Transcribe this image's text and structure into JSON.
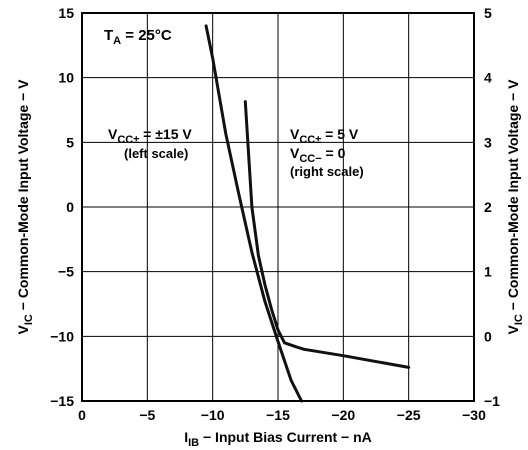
{
  "chart_data": {
    "type": "line",
    "x_axis": {
      "label_main": "I",
      "label_sub": "IB",
      "label_rest": " − Input Bias Current − nA",
      "range": [
        0,
        -30
      ],
      "ticks": [
        0,
        -5,
        -10,
        -15,
        -20,
        -25,
        -30
      ],
      "tick_labels": [
        "0",
        "−5",
        "−10",
        "−15",
        "−20",
        "−25",
        "−30"
      ]
    },
    "y_left": {
      "label_main": "V",
      "label_sub": "IC",
      "label_rest": " − Common-Mode Input Voltage − V",
      "range": [
        -15,
        15
      ],
      "ticks": [
        15,
        10,
        5,
        0,
        -5,
        -10,
        -15
      ],
      "tick_labels": [
        "15",
        "10",
        "5",
        "0",
        "−5",
        "−10",
        "−15"
      ]
    },
    "y_right": {
      "label_main": "V",
      "label_sub": "IC",
      "label_rest": " − Common-Mode Input Voltage − V",
      "range": [
        -1,
        5
      ],
      "ticks": [
        5,
        4,
        3,
        2,
        1,
        0,
        -1
      ],
      "tick_labels": [
        "5",
        "4",
        "3",
        "2",
        "1",
        "0",
        "−1"
      ]
    },
    "grid": true,
    "annotations": {
      "ta_main": "T",
      "ta_sub": "A",
      "ta_rest": " = 25°C",
      "left_line1_main": "V",
      "left_line1_sub": "CC±",
      "left_line1_rest": " = ±15 V",
      "left_line2": "(left scale)",
      "right_line1_main": "V",
      "right_line1_sub": "CC±",
      "right_line1_rest": " = 5 V",
      "right_line2_main": "V",
      "right_line2_sub": "CC−",
      "right_line2_rest": " = 0",
      "right_line3": "(right scale)"
    },
    "series": [
      {
        "axis": "left",
        "points": [
          [
            -9.5,
            14
          ],
          [
            -10,
            11.5
          ],
          [
            -11,
            5.7
          ],
          [
            -12,
            1
          ],
          [
            -13,
            -3.5
          ],
          [
            -14,
            -7.3
          ],
          [
            -15,
            -10.4
          ],
          [
            -16,
            -13.4
          ],
          [
            -16.8,
            -15
          ]
        ]
      },
      {
        "axis": "right",
        "points": [
          [
            -12.5,
            3.63
          ],
          [
            -13,
            2
          ],
          [
            -13.5,
            1.25
          ],
          [
            -14,
            0.8
          ],
          [
            -14.5,
            0.42
          ],
          [
            -15,
            0.1
          ],
          [
            -15.5,
            -0.1
          ],
          [
            -16.5,
            -0.17
          ],
          [
            -17,
            -0.2
          ],
          [
            -20,
            -0.3
          ],
          [
            -25,
            -0.48
          ]
        ]
      }
    ]
  }
}
